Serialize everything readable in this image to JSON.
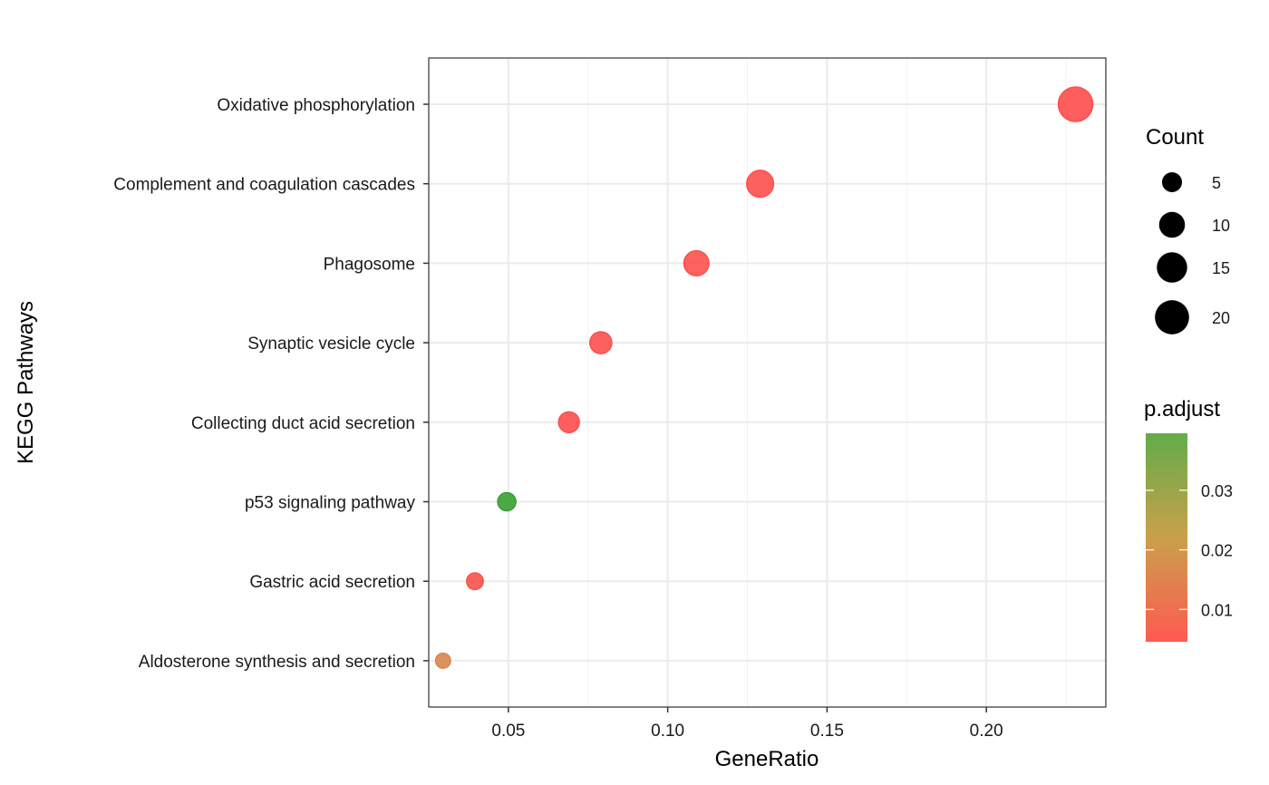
{
  "chart_data": {
    "type": "scatter",
    "xlabel": "GeneRatio",
    "ylabel": "KEGG Pathways",
    "xlim": [
      0.025,
      0.2375
    ],
    "x_ticks": [
      {
        "value": 0.05,
        "label": "0.05"
      },
      {
        "value": 0.1,
        "label": "0.10"
      },
      {
        "value": 0.15,
        "label": "0.15"
      },
      {
        "value": 0.2,
        "label": "0.20"
      }
    ],
    "grid": true,
    "categories": [
      "Oxidative phosphorylation",
      "Complement and coagulation cascades",
      "Phagosome",
      "Synaptic vesicle cycle",
      "Collecting duct acid secretion",
      "p53 signaling pathway",
      "Gastric acid secretion",
      "Aldosterone synthesis and secretion"
    ],
    "points": [
      {
        "pathway": "Oxidative phosphorylation",
        "gene_ratio": 0.228,
        "count": 23,
        "p_adjust": 0.0001
      },
      {
        "pathway": "Complement and coagulation cascades",
        "gene_ratio": 0.129,
        "count": 13,
        "p_adjust": 0.0004
      },
      {
        "pathway": "Phagosome",
        "gene_ratio": 0.109,
        "count": 11,
        "p_adjust": 0.0008
      },
      {
        "pathway": "Synaptic vesicle cycle",
        "gene_ratio": 0.079,
        "count": 8,
        "p_adjust": 0.0006
      },
      {
        "pathway": "Collecting duct acid secretion",
        "gene_ratio": 0.069,
        "count": 7,
        "p_adjust": 0.0003
      },
      {
        "pathway": "p53 signaling pathway",
        "gene_ratio": 0.0495,
        "count": 5,
        "p_adjust": 0.035
      },
      {
        "pathway": "Gastric acid secretion",
        "gene_ratio": 0.0395,
        "count": 4,
        "p_adjust": 0.001
      },
      {
        "pathway": "Aldosterone synthesis and secretion",
        "gene_ratio": 0.0295,
        "count": 3,
        "p_adjust": 0.012
      }
    ],
    "size_legend": {
      "title": "Count",
      "entries": [
        {
          "value": 5,
          "label": "5"
        },
        {
          "value": 10,
          "label": "10"
        },
        {
          "value": 15,
          "label": "15"
        },
        {
          "value": 20,
          "label": "20"
        }
      ]
    },
    "color_legend": {
      "title": "p.adjust",
      "low_color": "#ff5a52",
      "high_color": "#63ac4a",
      "range": [
        0.0,
        0.035
      ],
      "ticks": [
        {
          "value": 0.01,
          "label": "0.01"
        },
        {
          "value": 0.02,
          "label": "0.02"
        },
        {
          "value": 0.03,
          "label": "0.03"
        }
      ]
    },
    "legend_position": "right",
    "colors": {
      "low": "#ff4d4d",
      "mid": "#c9a04a",
      "high": "#3a9e34",
      "grid": "#ebebeb",
      "panel_border": "#333333"
    }
  }
}
